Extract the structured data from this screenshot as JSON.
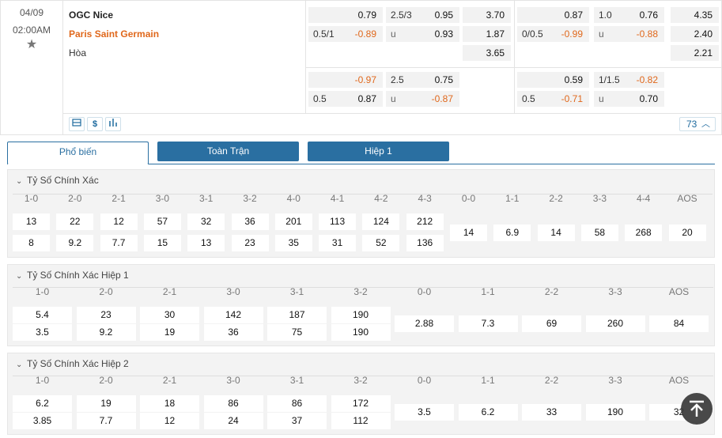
{
  "match": {
    "date": "04/09",
    "time": "02:00AM",
    "home": "OGC Nice",
    "away": "Paris Saint Germain",
    "draw": "Hòa"
  },
  "odds_full": {
    "handicap": {
      "home_line": "",
      "home": "0.79",
      "away_line": "0.5/1",
      "away": "-0.89"
    },
    "over_under": {
      "line": "2.5/3",
      "over": "0.95",
      "u_label": "u",
      "under": "0.93"
    },
    "x12": {
      "home": "3.70",
      "away": "1.87",
      "draw": "3.65"
    },
    "handicap2": {
      "home_line": "",
      "home": "-0.97",
      "away_line": "0.5",
      "away": "0.87"
    },
    "over_under2": {
      "line": "2.5",
      "over": "0.75",
      "u_label": "u",
      "under": "-0.87"
    }
  },
  "odds_half": {
    "handicap": {
      "home_line": "",
      "home": "0.87",
      "away_line": "0/0.5",
      "away": "-0.99"
    },
    "over_under": {
      "line": "1.0",
      "over": "0.76",
      "u_label": "u",
      "under": "-0.88"
    },
    "x12": {
      "home": "4.35",
      "away": "2.40",
      "draw": "2.21"
    },
    "handicap2": {
      "home_line": "",
      "home": "0.59",
      "away_line": "0.5",
      "away": "-0.71"
    },
    "over_under2": {
      "line": "1/1.5",
      "over": "-0.82",
      "u_label": "u",
      "under": "0.70"
    }
  },
  "icons": [
    "layers-icon",
    "dollar-icon",
    "bar-chart-icon"
  ],
  "more_count": "73",
  "tabs": [
    "Phổ biến",
    "Toàn Trận",
    "Hiệp 1"
  ],
  "sections": [
    {
      "title": "Tỷ Số Chính Xác",
      "columns": [
        "1-0",
        "2-0",
        "2-1",
        "3-0",
        "3-1",
        "3-2",
        "4-0",
        "4-1",
        "4-2",
        "4-3",
        "0-0",
        "1-1",
        "2-2",
        "3-3",
        "4-4",
        "AOS"
      ],
      "home": [
        "13",
        "22",
        "12",
        "57",
        "32",
        "36",
        "201",
        "113",
        "124",
        "212"
      ],
      "away": [
        "8",
        "9.2",
        "7.7",
        "15",
        "13",
        "23",
        "35",
        "31",
        "52",
        "136"
      ],
      "draws": [
        "14",
        "6.9",
        "14",
        "58",
        "268",
        "20"
      ]
    },
    {
      "title": "Tỷ Số Chính Xác Hiệp 1",
      "columns": [
        "1-0",
        "2-0",
        "2-1",
        "3-0",
        "3-1",
        "3-2",
        "0-0",
        "1-1",
        "2-2",
        "3-3",
        "AOS"
      ],
      "home": [
        "5.4",
        "23",
        "30",
        "142",
        "187",
        "190"
      ],
      "away": [
        "3.5",
        "9.2",
        "19",
        "36",
        "75",
        "190"
      ],
      "draws": [
        "2.88",
        "7.3",
        "69",
        "260",
        "84"
      ]
    },
    {
      "title": "Tỷ Số Chính Xác Hiệp 2",
      "columns": [
        "1-0",
        "2-0",
        "2-1",
        "3-0",
        "3-1",
        "3-2",
        "0-0",
        "1-1",
        "2-2",
        "3-3",
        "AOS"
      ],
      "home": [
        "6.2",
        "19",
        "18",
        "86",
        "86",
        "172"
      ],
      "away": [
        "3.85",
        "7.7",
        "12",
        "24",
        "37",
        "112"
      ],
      "draws": [
        "3.5",
        "6.2",
        "33",
        "190",
        "32"
      ]
    }
  ],
  "colors": {
    "accent": "#2a6fa1",
    "negative": "#e0681c",
    "cell_bg": "#f2f2f2"
  }
}
